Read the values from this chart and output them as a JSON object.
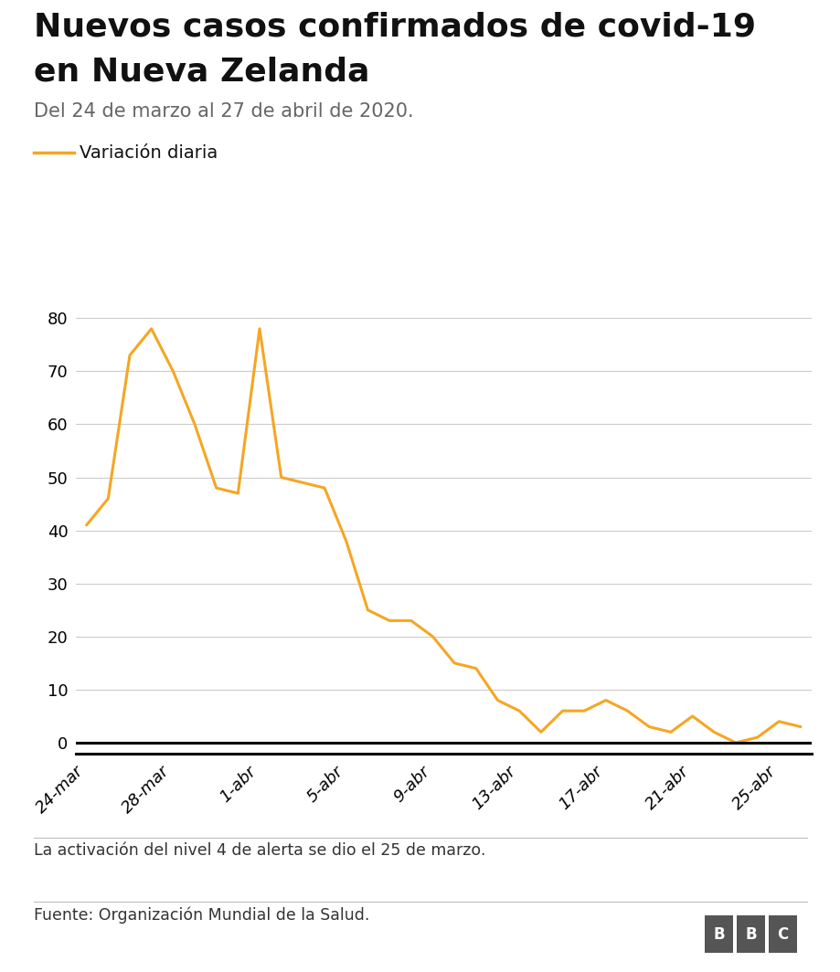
{
  "title_line1": "Nuevos casos confirmados de covid-19",
  "title_line2": "en Nueva Zelanda",
  "subtitle": "Del 24 de marzo al 27 de abril de 2020.",
  "legend_label": "Variación diaria",
  "line_color": "#F5A623",
  "line_width": 2.2,
  "x_labels": [
    "24-mar",
    "28-mar",
    "1-abr",
    "5-abr",
    "9-abr",
    "13-abr",
    "17-abr",
    "21-abr",
    "25-abr"
  ],
  "x_tick_positions": [
    0,
    4,
    8,
    12,
    16,
    20,
    24,
    28,
    32
  ],
  "y_ticks": [
    0,
    10,
    20,
    30,
    40,
    50,
    60,
    70,
    80
  ],
  "ylim": [
    -2,
    85
  ],
  "footnote1": "La activación del nivel 4 de alerta se dio el 25 de marzo.",
  "footnote2": "Fuente: Organización Mundial de la Salud.",
  "background_color": "#ffffff",
  "values": [
    41,
    46,
    73,
    78,
    70,
    60,
    48,
    47,
    78,
    50,
    49,
    48,
    38,
    25,
    23,
    23,
    20,
    15,
    14,
    8,
    6,
    2,
    6,
    6,
    8,
    6,
    3,
    2,
    5,
    2,
    0,
    1,
    4,
    3
  ]
}
